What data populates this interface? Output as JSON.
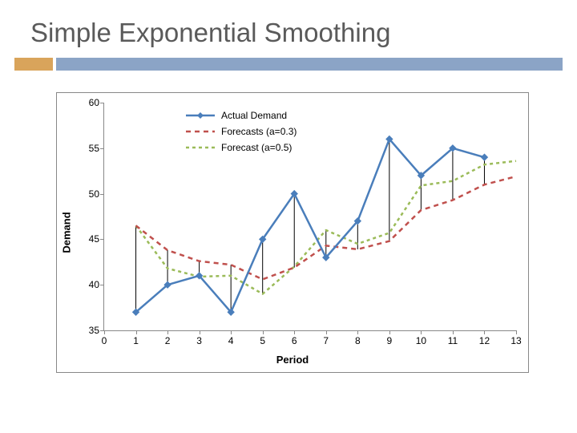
{
  "title": "Simple Exponential Smoothing",
  "accent": {
    "left_color": "#d9a45b",
    "right_color": "#8ba4c6"
  },
  "chart": {
    "type": "line",
    "x_axis": {
      "label": "Period",
      "min": 0,
      "max": 13,
      "tick_step": 1,
      "label_fontsize": 13
    },
    "y_axis": {
      "label": "Demand",
      "min": 35,
      "max": 60,
      "tick_step": 5,
      "label_fontsize": 13
    },
    "background_color": "#ffffff",
    "border_color": "#888888",
    "tick_fontsize": 12,
    "legend": {
      "position": "top-left-inside",
      "items": [
        {
          "label": "Actual Demand",
          "series_key": "actual"
        },
        {
          "label": "Forecasts (a=0.3)",
          "series_key": "forecast03"
        },
        {
          "label": "Forecast (a=0.5)",
          "series_key": "forecast05"
        }
      ]
    },
    "series": {
      "actual": {
        "color": "#4a7ebb",
        "line_width": 2.5,
        "dash": "none",
        "marker": "diamond",
        "marker_size": 8,
        "x": [
          1,
          2,
          3,
          4,
          5,
          6,
          7,
          8,
          9,
          10,
          11,
          12
        ],
        "y": [
          37,
          40,
          41,
          37,
          45,
          50,
          43,
          47,
          56,
          52,
          55,
          54
        ]
      },
      "forecast03": {
        "color": "#c0504d",
        "line_width": 2.5,
        "dash": "6,5",
        "marker": "none",
        "x": [
          1,
          2,
          3,
          4,
          5,
          6,
          7,
          8,
          9,
          10,
          11,
          12,
          13
        ],
        "y": [
          46.5,
          43.8,
          42.6,
          42.2,
          40.6,
          41.9,
          44.3,
          43.9,
          44.8,
          48.2,
          49.3,
          51,
          51.9
        ]
      },
      "forecast05": {
        "color": "#9bbb59",
        "line_width": 2.5,
        "dash": "4,4",
        "marker": "none",
        "x": [
          1,
          2,
          3,
          4,
          5,
          6,
          7,
          8,
          9,
          10,
          11,
          12,
          13
        ],
        "y": [
          46.5,
          41.8,
          40.9,
          41,
          39,
          42,
          46,
          44.5,
          45.7,
          50.9,
          51.4,
          53.2,
          53.6
        ]
      }
    },
    "error_bars": {
      "ref_series": "actual",
      "targets": [
        "forecast03",
        "forecast05"
      ],
      "color": "#000000",
      "width": 1
    }
  }
}
